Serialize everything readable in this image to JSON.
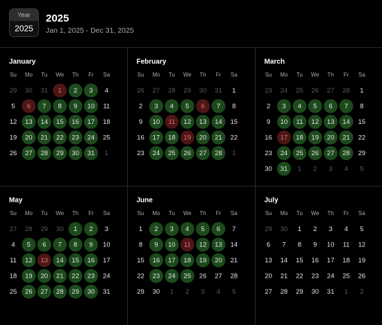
{
  "header": {
    "badge_label": "Year",
    "badge_value": "2025",
    "title": "2025",
    "subtitle": "Jan 1, 2025 - Dec 31, 2025"
  },
  "weekdays": [
    "Su",
    "Mo",
    "Tu",
    "We",
    "Th",
    "Fr",
    "Sa"
  ],
  "state_colors": {
    "out": "#5a5a5a",
    "none": "#e6e6e6",
    "on": "#1c4a1c",
    "off": "#4d1616"
  },
  "months": [
    {
      "name": "January",
      "days": [
        29,
        30,
        31,
        1,
        2,
        3,
        4,
        5,
        6,
        7,
        8,
        9,
        10,
        11,
        12,
        13,
        14,
        15,
        16,
        17,
        18,
        19,
        20,
        21,
        22,
        23,
        24,
        25,
        26,
        27,
        28,
        29,
        30,
        31,
        1
      ],
      "states": [
        "out",
        "out",
        "out",
        "off",
        "on",
        "on",
        "none",
        "none",
        "off",
        "on",
        "on",
        "on",
        "on",
        "none",
        "none",
        "on",
        "on",
        "on",
        "on",
        "on",
        "none",
        "none",
        "on",
        "on",
        "on",
        "on",
        "on",
        "none",
        "none",
        "on",
        "on",
        "on",
        "on",
        "on",
        "out"
      ]
    },
    {
      "name": "February",
      "days": [
        26,
        27,
        28,
        29,
        30,
        31,
        1,
        2,
        3,
        4,
        5,
        6,
        7,
        8,
        9,
        10,
        11,
        12,
        13,
        14,
        15,
        16,
        17,
        18,
        19,
        20,
        21,
        22,
        23,
        24,
        25,
        26,
        27,
        28,
        1
      ],
      "states": [
        "out",
        "out",
        "out",
        "out",
        "out",
        "out",
        "none",
        "none",
        "on",
        "on",
        "on",
        "off",
        "on",
        "none",
        "none",
        "on",
        "off",
        "on",
        "on",
        "on",
        "none",
        "none",
        "on",
        "on",
        "off",
        "on",
        "on",
        "none",
        "none",
        "on",
        "on",
        "on",
        "on",
        "on",
        "out"
      ]
    },
    {
      "name": "March",
      "days": [
        23,
        24,
        25,
        26,
        27,
        28,
        1,
        2,
        3,
        4,
        5,
        6,
        7,
        8,
        9,
        10,
        11,
        12,
        13,
        14,
        15,
        16,
        17,
        18,
        19,
        20,
        21,
        22,
        23,
        24,
        25,
        26,
        27,
        28,
        29,
        30,
        31,
        1,
        2,
        3,
        4,
        5
      ],
      "states": [
        "out",
        "out",
        "out",
        "out",
        "out",
        "out",
        "none",
        "none",
        "on",
        "on",
        "on",
        "on",
        "on",
        "none",
        "none",
        "on",
        "on",
        "on",
        "on",
        "on",
        "none",
        "none",
        "off",
        "on",
        "on",
        "on",
        "on",
        "none",
        "none",
        "on",
        "on",
        "on",
        "on",
        "on",
        "none",
        "none",
        "on",
        "out",
        "out",
        "out",
        "out",
        "out"
      ]
    },
    {
      "name": "May",
      "days": [
        27,
        28,
        29,
        30,
        1,
        2,
        3,
        4,
        5,
        6,
        7,
        8,
        9,
        10,
        11,
        12,
        13,
        14,
        15,
        16,
        17,
        18,
        19,
        20,
        21,
        22,
        23,
        24,
        25,
        26,
        27,
        28,
        29,
        30,
        31
      ],
      "states": [
        "out",
        "out",
        "out",
        "out",
        "on",
        "on",
        "none",
        "none",
        "on",
        "on",
        "on",
        "on",
        "on",
        "none",
        "none",
        "on",
        "off",
        "on",
        "on",
        "on",
        "none",
        "none",
        "on",
        "on",
        "on",
        "on",
        "on",
        "none",
        "none",
        "on",
        "on",
        "on",
        "on",
        "on",
        "none"
      ]
    },
    {
      "name": "June",
      "days": [
        1,
        2,
        3,
        4,
        5,
        6,
        7,
        8,
        9,
        10,
        11,
        12,
        13,
        14,
        15,
        16,
        17,
        18,
        19,
        20,
        21,
        22,
        23,
        24,
        25,
        26,
        27,
        28,
        29,
        30,
        1,
        2,
        3,
        4,
        5
      ],
      "states": [
        "none",
        "on",
        "on",
        "on",
        "on",
        "on",
        "none",
        "none",
        "on",
        "on",
        "off",
        "on",
        "on",
        "none",
        "none",
        "on",
        "on",
        "on",
        "on",
        "on",
        "none",
        "none",
        "on",
        "on",
        "on",
        "none",
        "none",
        "none",
        "none",
        "none",
        "out",
        "out",
        "out",
        "out",
        "out"
      ]
    },
    {
      "name": "July",
      "days": [
        29,
        30,
        1,
        2,
        3,
        4,
        5,
        6,
        7,
        8,
        9,
        10,
        11,
        12,
        13,
        14,
        15,
        16,
        17,
        18,
        19,
        20,
        21,
        22,
        23,
        24,
        25,
        26,
        27,
        28,
        29,
        30,
        31,
        1,
        2
      ],
      "states": [
        "out",
        "out",
        "none",
        "none",
        "none",
        "none",
        "none",
        "none",
        "none",
        "none",
        "none",
        "none",
        "none",
        "none",
        "none",
        "none",
        "none",
        "none",
        "none",
        "none",
        "none",
        "none",
        "none",
        "none",
        "none",
        "none",
        "none",
        "none",
        "none",
        "none",
        "none",
        "none",
        "none",
        "out",
        "out"
      ]
    }
  ]
}
